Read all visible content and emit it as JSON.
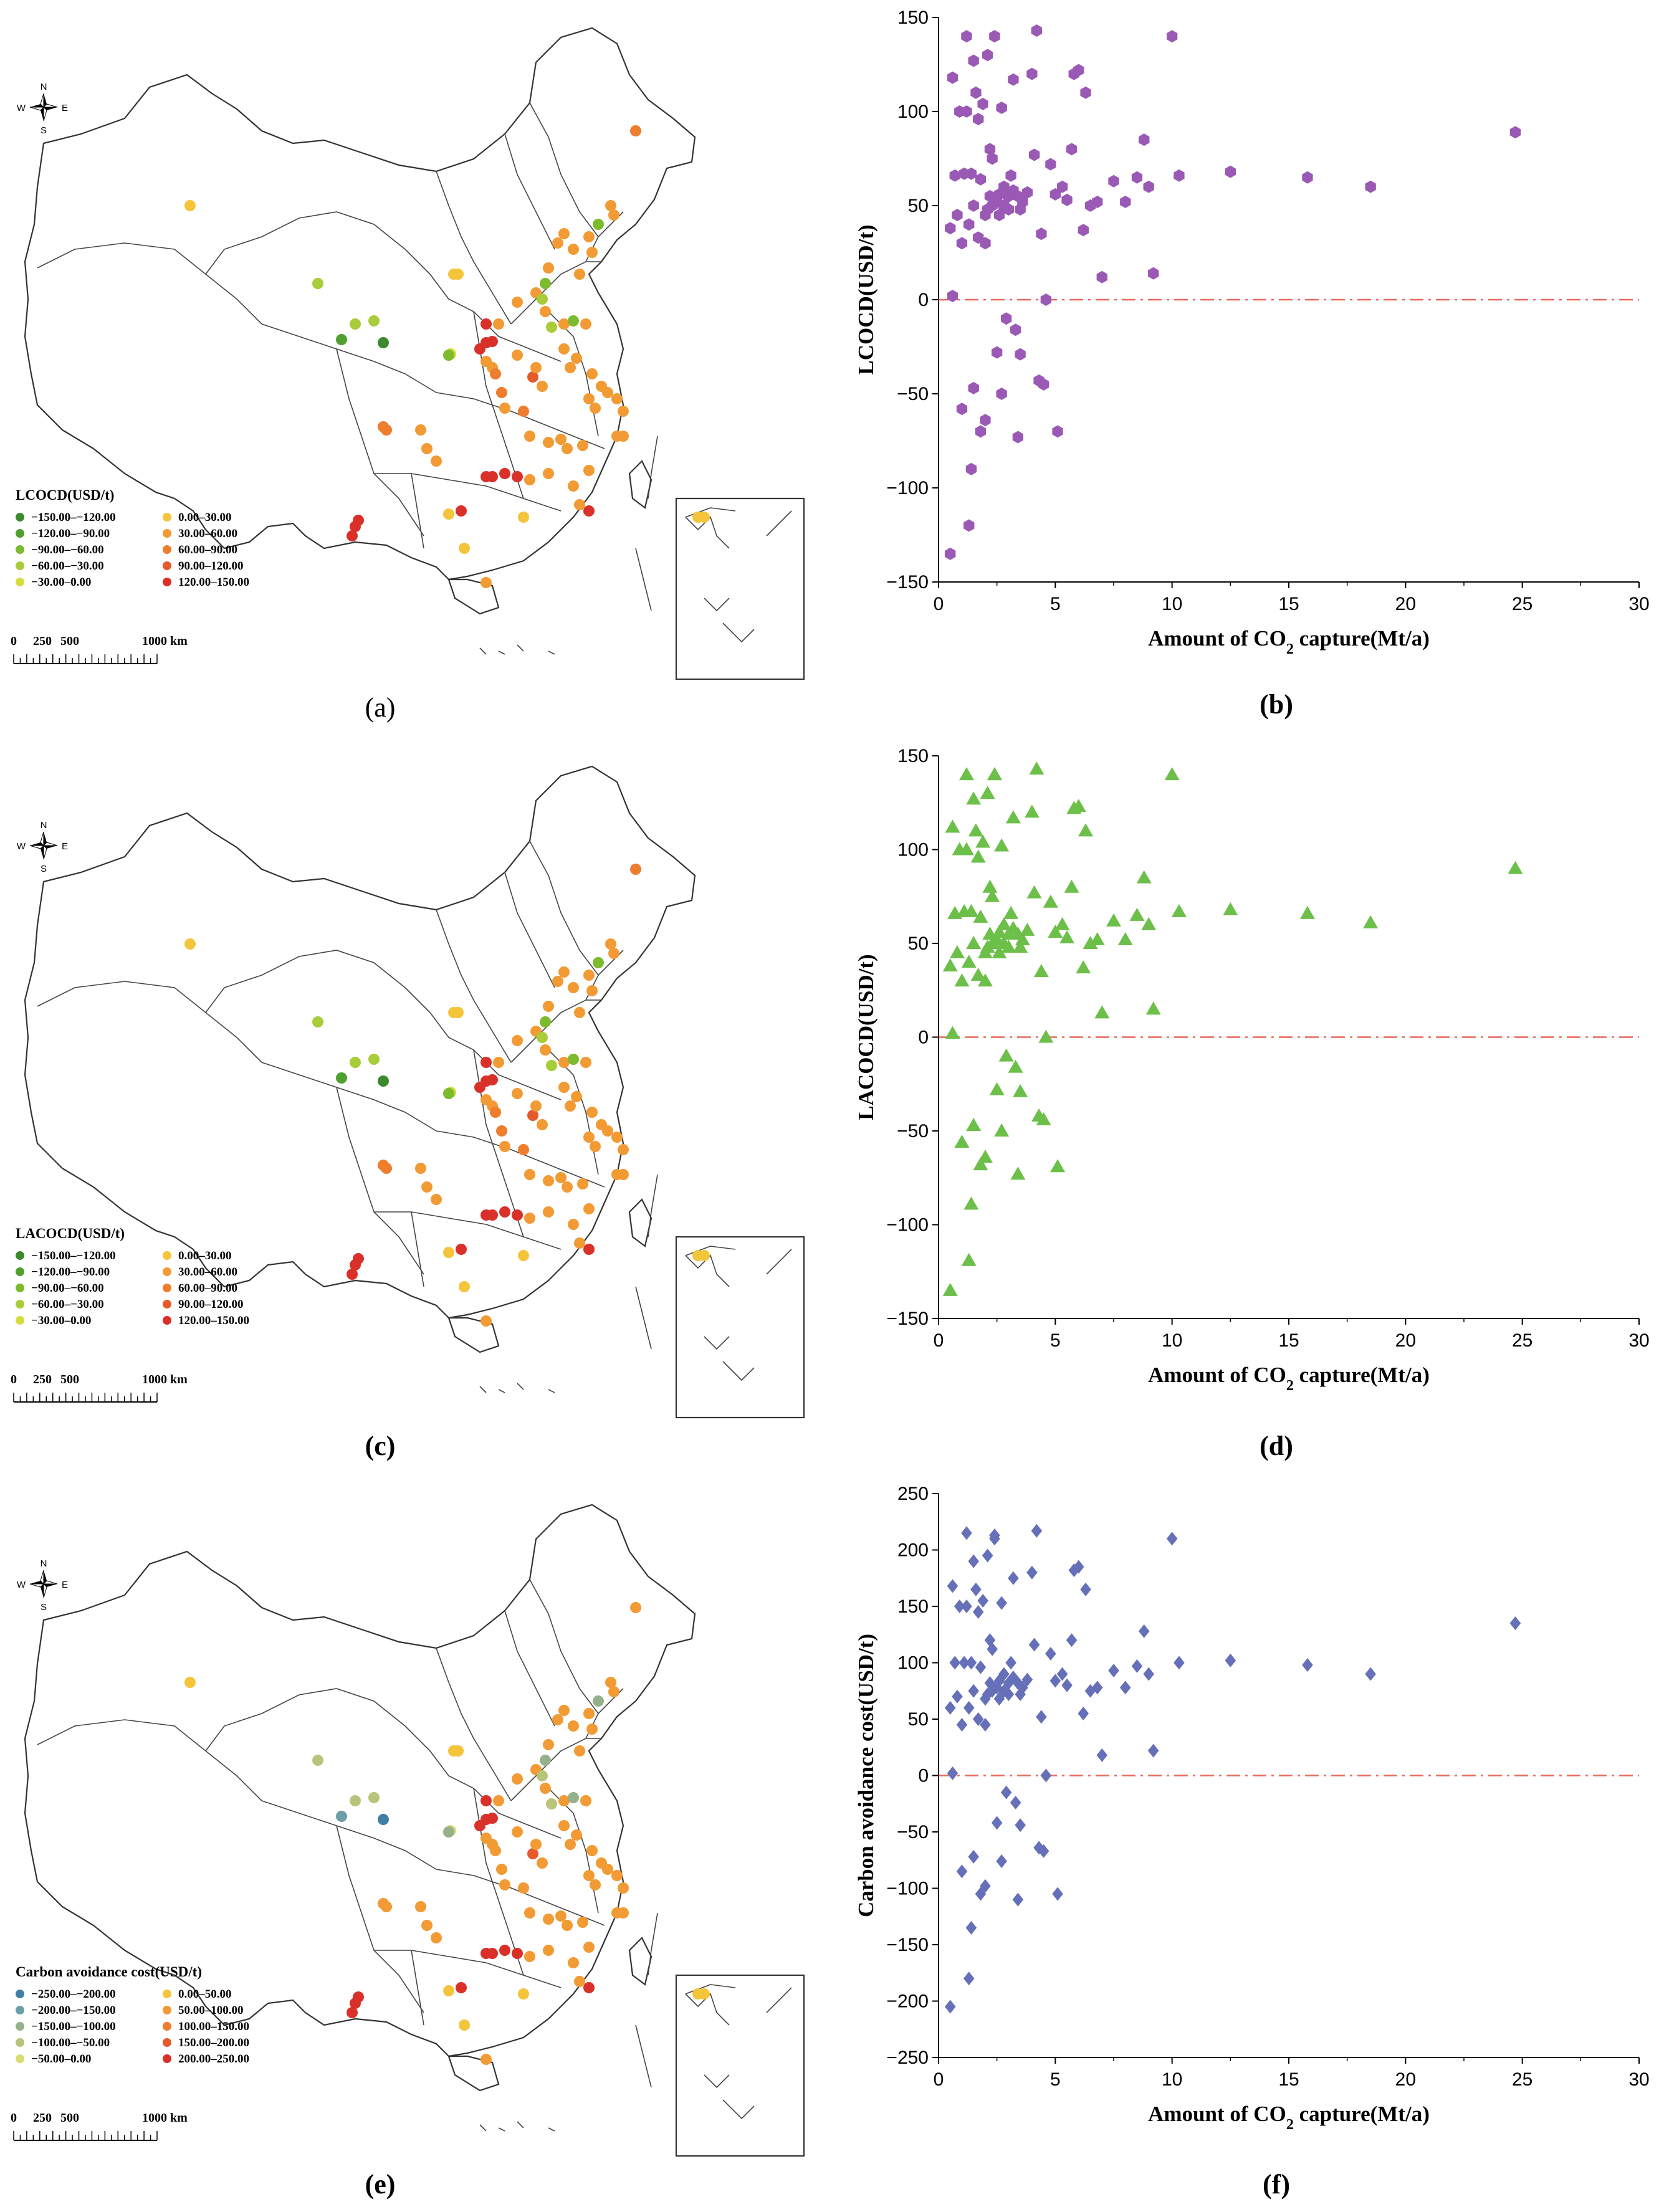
{
  "maps": [
    {
      "label": "(a)",
      "legend_title": "LCOCD(USD/t)",
      "legend_left": [
        "−150.00–−120.00",
        "−120.00–−90.00",
        "−90.00–−60.00",
        "−60.00–−30.00",
        "−30.00–0.00"
      ],
      "legend_right": [
        "0.00–30.00",
        "30.00–60.00",
        "60.00–90.00",
        "90.00–120.00",
        "120.00–150.00"
      ],
      "colors_left": [
        "#3d8a2e",
        "#4fa02e",
        "#7cba2e",
        "#a8cc3a",
        "#d6dc3c"
      ],
      "colors_right": [
        "#f4c43a",
        "#f29a34",
        "#ee7d2e",
        "#e55a2a",
        "#d9302a"
      ]
    },
    {
      "label": "(c)",
      "legend_title": "LACOCD(USD/t)",
      "legend_left": [
        "−150.00–−120.00",
        "−120.00–−90.00",
        "−90.00–−60.00",
        "−60.00–−30.00",
        "−30.00–0.00"
      ],
      "legend_right": [
        "0.00–30.00",
        "30.00–60.00",
        "60.00–90.00",
        "90.00–120.00",
        "120.00–150.00"
      ],
      "colors_left": [
        "#3d8a2e",
        "#4fa02e",
        "#7cba2e",
        "#a8cc3a",
        "#d6dc3c"
      ],
      "colors_right": [
        "#f4c43a",
        "#f29a34",
        "#ee7d2e",
        "#e55a2a",
        "#d9302a"
      ]
    },
    {
      "label": "(e)",
      "legend_title": "Carbon avoidance cost(USD/t)",
      "legend_left": [
        "−250.00–−200.00",
        "−200.00–−150.00",
        "−150.00–−100.00",
        "−100.00–−50.00",
        "−50.00–0.00"
      ],
      "legend_right": [
        "0.00–50.00",
        "50.00–100.00",
        "100.00–150.00",
        "150.00–200.00",
        "200.00–250.00"
      ],
      "colors_left": [
        "#3f7fa6",
        "#6a9fa8",
        "#95b08a",
        "#b8c47a",
        "#d8dc72"
      ],
      "colors_right": [
        "#f4c43a",
        "#f29a34",
        "#ee7d2e",
        "#e55a2a",
        "#d9302a"
      ]
    }
  ],
  "compass": {
    "n": "N",
    "s": "S",
    "e": "E",
    "w": "W"
  },
  "scale_bar": {
    "ticks": [
      "0",
      "250",
      "500",
      "1000 km"
    ]
  },
  "chart_data": [
    {
      "type": "scatter",
      "label": "(b)",
      "xlabel_parts": [
        "Amount of CO",
        "2",
        " capture(Mt/a)"
      ],
      "ylabel": "LCOCD(USD/t)",
      "xlim": [
        0,
        30
      ],
      "ylim": [
        -150,
        150
      ],
      "xticks": [
        0,
        5,
        10,
        15,
        20,
        25,
        30
      ],
      "yticks": [
        -150,
        -100,
        -50,
        0,
        50,
        100,
        150
      ],
      "marker": "hexagon",
      "color": "#9b59b6",
      "reference_line": {
        "y": 0,
        "color": "#e8685a",
        "style": "dash-dot"
      },
      "points": [
        [
          0.5,
          -135
        ],
        [
          0.5,
          38
        ],
        [
          0.6,
          118
        ],
        [
          0.7,
          66
        ],
        [
          0.8,
          45
        ],
        [
          0.9,
          100
        ],
        [
          1.0,
          30
        ],
        [
          1.0,
          -58
        ],
        [
          1.1,
          67
        ],
        [
          1.2,
          140
        ],
        [
          1.2,
          100
        ],
        [
          1.3,
          40
        ],
        [
          1.3,
          -120
        ],
        [
          1.4,
          -90
        ],
        [
          1.5,
          50
        ],
        [
          1.5,
          127
        ],
        [
          1.5,
          -47
        ],
        [
          1.6,
          110
        ],
        [
          1.7,
          33
        ],
        [
          1.7,
          96
        ],
        [
          1.8,
          64
        ],
        [
          1.8,
          -70
        ],
        [
          1.9,
          104
        ],
        [
          2.0,
          45
        ],
        [
          2.0,
          -64
        ],
        [
          2.0,
          30
        ],
        [
          2.1,
          48
        ],
        [
          2.1,
          130
        ],
        [
          2.2,
          80
        ],
        [
          2.2,
          55
        ],
        [
          2.3,
          75
        ],
        [
          2.3,
          50
        ],
        [
          2.4,
          140
        ],
        [
          2.5,
          52
        ],
        [
          2.5,
          -28
        ],
        [
          2.6,
          45
        ],
        [
          2.6,
          56
        ],
        [
          2.7,
          102
        ],
        [
          2.7,
          -50
        ],
        [
          2.8,
          50
        ],
        [
          2.8,
          60
        ],
        [
          2.9,
          -10
        ],
        [
          3.0,
          55
        ],
        [
          3.0,
          48
        ],
        [
          3.1,
          66
        ],
        [
          3.2,
          58
        ],
        [
          3.2,
          117
        ],
        [
          3.3,
          -16
        ],
        [
          3.4,
          55
        ],
        [
          3.4,
          -73
        ],
        [
          3.5,
          -29
        ],
        [
          3.5,
          48
        ],
        [
          3.6,
          52
        ],
        [
          3.8,
          57
        ],
        [
          4.0,
          120
        ],
        [
          4.1,
          77
        ],
        [
          4.2,
          143
        ],
        [
          4.3,
          -43
        ],
        [
          4.4,
          35
        ],
        [
          4.5,
          -45
        ],
        [
          4.6,
          0
        ],
        [
          4.8,
          72
        ],
        [
          5.0,
          56
        ],
        [
          5.1,
          -70
        ],
        [
          5.3,
          60
        ],
        [
          5.5,
          53
        ],
        [
          5.7,
          80
        ],
        [
          5.8,
          120
        ],
        [
          6.0,
          122
        ],
        [
          6.2,
          37
        ],
        [
          6.3,
          110
        ],
        [
          6.5,
          50
        ],
        [
          6.8,
          52
        ],
        [
          7.0,
          12
        ],
        [
          7.5,
          63
        ],
        [
          8.0,
          52
        ],
        [
          8.5,
          65
        ],
        [
          8.8,
          85
        ],
        [
          9.0,
          60
        ],
        [
          9.2,
          14
        ],
        [
          10.0,
          140
        ],
        [
          10.3,
          66
        ],
        [
          12.5,
          68
        ],
        [
          15.8,
          65
        ],
        [
          18.5,
          60
        ],
        [
          24.7,
          89
        ],
        [
          0.6,
          2
        ],
        [
          1.4,
          67
        ],
        [
          2.4,
          140
        ]
      ]
    },
    {
      "type": "scatter",
      "label": "(d)",
      "xlabel_parts": [
        "Amount of CO",
        "2",
        " capture(Mt/a)"
      ],
      "ylabel": "LACOCD(USD/t)",
      "xlim": [
        0,
        30
      ],
      "ylim": [
        -150,
        150
      ],
      "xticks": [
        0,
        5,
        10,
        15,
        20,
        25,
        30
      ],
      "yticks": [
        -150,
        -100,
        -50,
        0,
        50,
        100,
        150
      ],
      "marker": "triangle",
      "color": "#6cbf49",
      "reference_line": {
        "y": 0,
        "color": "#e8685a",
        "style": "dash-dot"
      },
      "points": [
        [
          0.5,
          -135
        ],
        [
          0.5,
          38
        ],
        [
          0.6,
          112
        ],
        [
          0.7,
          66
        ],
        [
          0.8,
          45
        ],
        [
          0.9,
          100
        ],
        [
          1.0,
          30
        ],
        [
          1.0,
          -56
        ],
        [
          1.1,
          67
        ],
        [
          1.2,
          140
        ],
        [
          1.2,
          100
        ],
        [
          1.3,
          40
        ],
        [
          1.3,
          -119
        ],
        [
          1.4,
          -89
        ],
        [
          1.5,
          50
        ],
        [
          1.5,
          127
        ],
        [
          1.5,
          -47
        ],
        [
          1.6,
          110
        ],
        [
          1.7,
          33
        ],
        [
          1.7,
          96
        ],
        [
          1.8,
          64
        ],
        [
          1.8,
          -68
        ],
        [
          1.9,
          104
        ],
        [
          2.0,
          45
        ],
        [
          2.0,
          -64
        ],
        [
          2.0,
          30
        ],
        [
          2.1,
          48
        ],
        [
          2.1,
          130
        ],
        [
          2.2,
          80
        ],
        [
          2.2,
          55
        ],
        [
          2.3,
          75
        ],
        [
          2.3,
          50
        ],
        [
          2.4,
          140
        ],
        [
          2.5,
          52
        ],
        [
          2.5,
          -28
        ],
        [
          2.6,
          45
        ],
        [
          2.6,
          56
        ],
        [
          2.7,
          102
        ],
        [
          2.7,
          -50
        ],
        [
          2.8,
          50
        ],
        [
          2.8,
          60
        ],
        [
          2.9,
          -10
        ],
        [
          3.0,
          55
        ],
        [
          3.0,
          48
        ],
        [
          3.1,
          66
        ],
        [
          3.2,
          58
        ],
        [
          3.2,
          117
        ],
        [
          3.3,
          -16
        ],
        [
          3.4,
          55
        ],
        [
          3.4,
          -73
        ],
        [
          3.5,
          -29
        ],
        [
          3.5,
          48
        ],
        [
          3.6,
          52
        ],
        [
          3.8,
          57
        ],
        [
          4.0,
          120
        ],
        [
          4.1,
          77
        ],
        [
          4.2,
          143
        ],
        [
          4.3,
          -42
        ],
        [
          4.4,
          35
        ],
        [
          4.5,
          -44
        ],
        [
          4.6,
          0
        ],
        [
          4.8,
          72
        ],
        [
          5.0,
          56
        ],
        [
          5.1,
          -69
        ],
        [
          5.3,
          60
        ],
        [
          5.5,
          53
        ],
        [
          5.7,
          80
        ],
        [
          5.8,
          122
        ],
        [
          6.0,
          123
        ],
        [
          6.2,
          37
        ],
        [
          6.3,
          110
        ],
        [
          6.5,
          50
        ],
        [
          6.8,
          52
        ],
        [
          7.0,
          13
        ],
        [
          7.5,
          62
        ],
        [
          8.0,
          52
        ],
        [
          8.5,
          65
        ],
        [
          8.8,
          85
        ],
        [
          9.0,
          60
        ],
        [
          9.2,
          15
        ],
        [
          10.0,
          140
        ],
        [
          10.3,
          67
        ],
        [
          12.5,
          68
        ],
        [
          15.8,
          66
        ],
        [
          18.5,
          61
        ],
        [
          24.7,
          90
        ],
        [
          0.6,
          2
        ],
        [
          1.4,
          67
        ],
        [
          2.4,
          140
        ]
      ]
    },
    {
      "type": "scatter",
      "label": "(f)",
      "xlabel_parts": [
        "Amount of CO",
        "2",
        " capture(Mt/a)"
      ],
      "ylabel": "Carbon avoidance cost(USD/t)",
      "xlim": [
        0,
        30
      ],
      "ylim": [
        -250,
        250
      ],
      "xticks": [
        0,
        5,
        10,
        15,
        20,
        25,
        30
      ],
      "yticks": [
        -250,
        -200,
        -150,
        -100,
        -50,
        0,
        50,
        100,
        150,
        200,
        250
      ],
      "marker": "diamond",
      "color": "#6670b8",
      "reference_line": {
        "y": 0,
        "color": "#e8685a",
        "style": "dash-dot"
      },
      "points": [
        [
          0.5,
          -205
        ],
        [
          0.5,
          60
        ],
        [
          0.6,
          168
        ],
        [
          0.7,
          100
        ],
        [
          0.8,
          70
        ],
        [
          0.9,
          150
        ],
        [
          1.0,
          45
        ],
        [
          1.0,
          -85
        ],
        [
          1.1,
          100
        ],
        [
          1.2,
          215
        ],
        [
          1.2,
          150
        ],
        [
          1.3,
          60
        ],
        [
          1.3,
          -180
        ],
        [
          1.4,
          -135
        ],
        [
          1.5,
          75
        ],
        [
          1.5,
          190
        ],
        [
          1.5,
          -72
        ],
        [
          1.6,
          165
        ],
        [
          1.7,
          50
        ],
        [
          1.7,
          145
        ],
        [
          1.8,
          96
        ],
        [
          1.8,
          -105
        ],
        [
          1.9,
          155
        ],
        [
          2.0,
          68
        ],
        [
          2.0,
          -98
        ],
        [
          2.0,
          45
        ],
        [
          2.1,
          72
        ],
        [
          2.1,
          195
        ],
        [
          2.2,
          120
        ],
        [
          2.2,
          82
        ],
        [
          2.3,
          112
        ],
        [
          2.3,
          75
        ],
        [
          2.4,
          213
        ],
        [
          2.5,
          78
        ],
        [
          2.5,
          -42
        ],
        [
          2.6,
          68
        ],
        [
          2.6,
          84
        ],
        [
          2.7,
          153
        ],
        [
          2.7,
          -76
        ],
        [
          2.8,
          75
        ],
        [
          2.8,
          90
        ],
        [
          2.9,
          -15
        ],
        [
          3.0,
          82
        ],
        [
          3.0,
          72
        ],
        [
          3.1,
          100
        ],
        [
          3.2,
          87
        ],
        [
          3.2,
          175
        ],
        [
          3.3,
          -24
        ],
        [
          3.4,
          82
        ],
        [
          3.4,
          -110
        ],
        [
          3.5,
          -44
        ],
        [
          3.5,
          72
        ],
        [
          3.6,
          78
        ],
        [
          3.8,
          85
        ],
        [
          4.0,
          180
        ],
        [
          4.1,
          116
        ],
        [
          4.2,
          217
        ],
        [
          4.3,
          -64
        ],
        [
          4.4,
          52
        ],
        [
          4.5,
          -67
        ],
        [
          4.6,
          0
        ],
        [
          4.8,
          108
        ],
        [
          5.0,
          84
        ],
        [
          5.1,
          -105
        ],
        [
          5.3,
          90
        ],
        [
          5.5,
          80
        ],
        [
          5.7,
          120
        ],
        [
          5.8,
          182
        ],
        [
          6.0,
          185
        ],
        [
          6.2,
          55
        ],
        [
          6.3,
          165
        ],
        [
          6.5,
          75
        ],
        [
          6.8,
          78
        ],
        [
          7.0,
          18
        ],
        [
          7.5,
          93
        ],
        [
          8.0,
          78
        ],
        [
          8.5,
          97
        ],
        [
          8.8,
          128
        ],
        [
          9.0,
          90
        ],
        [
          9.2,
          22
        ],
        [
          10.0,
          210
        ],
        [
          10.3,
          100
        ],
        [
          12.5,
          102
        ],
        [
          15.8,
          98
        ],
        [
          18.5,
          90
        ],
        [
          24.7,
          135
        ],
        [
          0.6,
          2
        ],
        [
          1.4,
          100
        ],
        [
          2.4,
          210
        ]
      ]
    }
  ]
}
